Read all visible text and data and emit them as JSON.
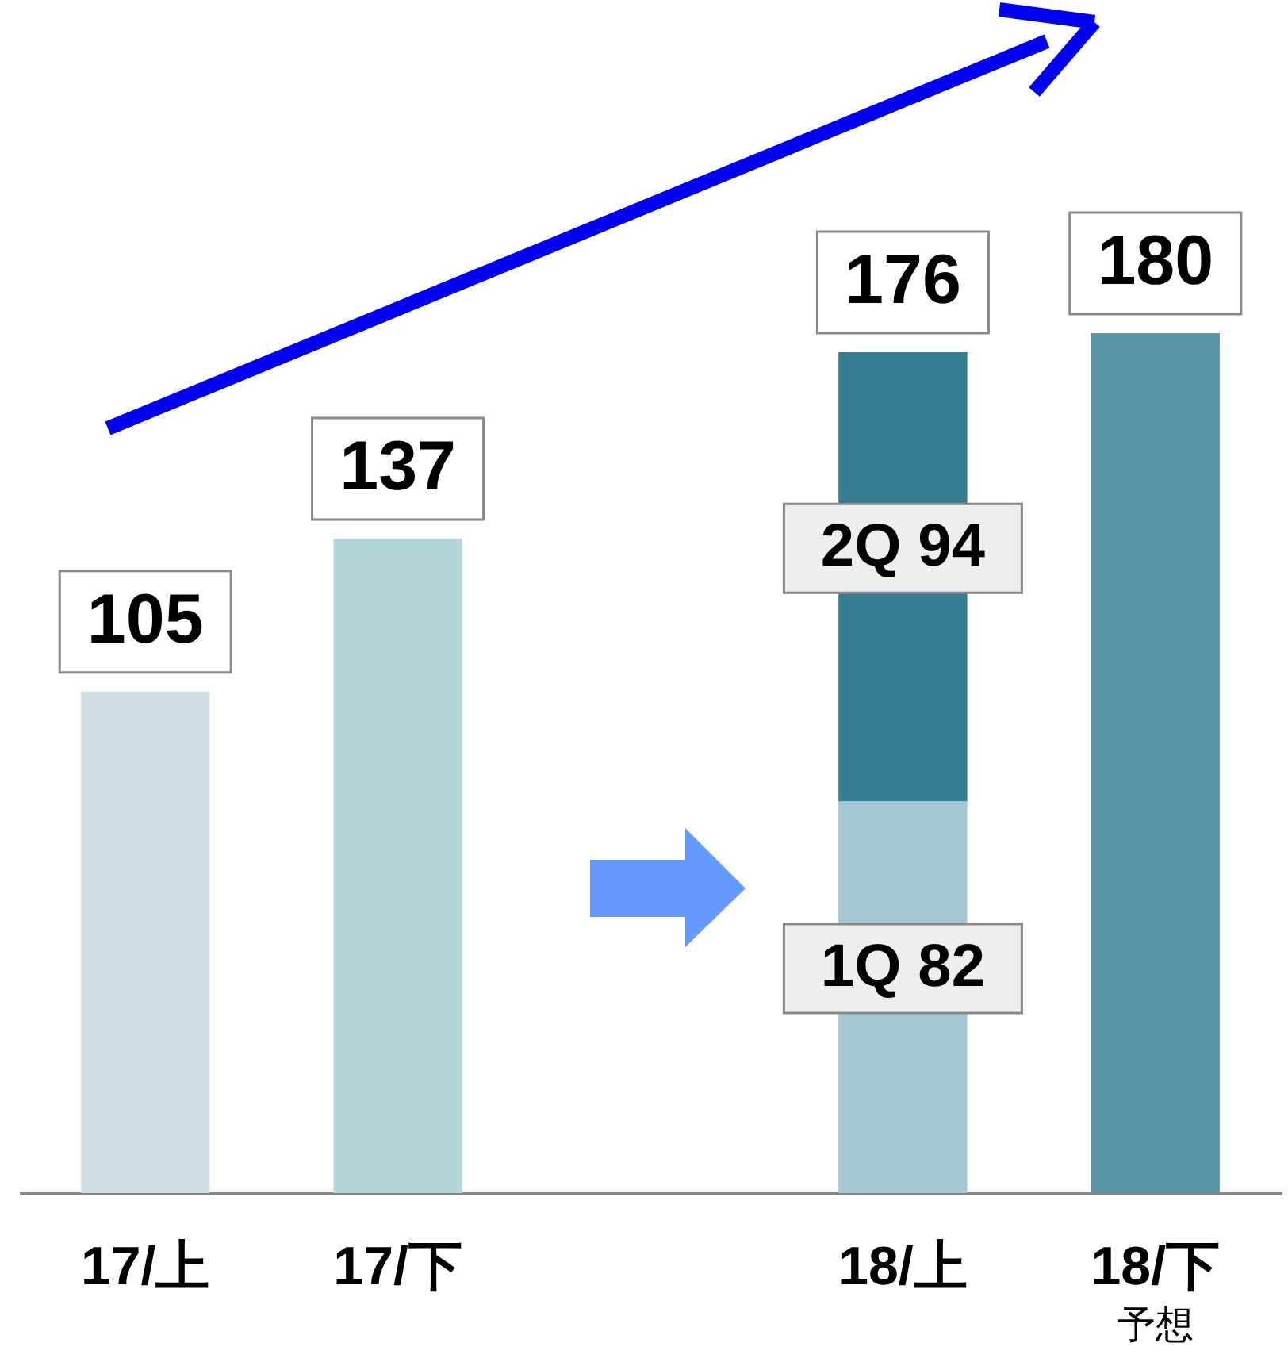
{
  "chart_data": {
    "type": "bar",
    "stacked": true,
    "categories": [
      "17/上",
      "17/下",
      null,
      "18/上",
      "18/下"
    ],
    "series": [
      {
        "colors": [
          "#d0dfe4",
          "#b5d5dc",
          null,
          "#a3c8d3",
          "#5a97a6"
        ],
        "values": [
          105,
          137,
          null,
          82,
          180
        ],
        "value_labels": [
          null,
          null,
          null,
          "1Q 82",
          null
        ]
      },
      {
        "color": "#357b91",
        "values": [
          null,
          null,
          null,
          94,
          null
        ],
        "value_labels": [
          null,
          null,
          null,
          "2Q 94",
          null
        ]
      }
    ],
    "totals": [
      "105",
      "137",
      null,
      "176",
      "180"
    ],
    "annotations": [
      "予想"
    ]
  }
}
